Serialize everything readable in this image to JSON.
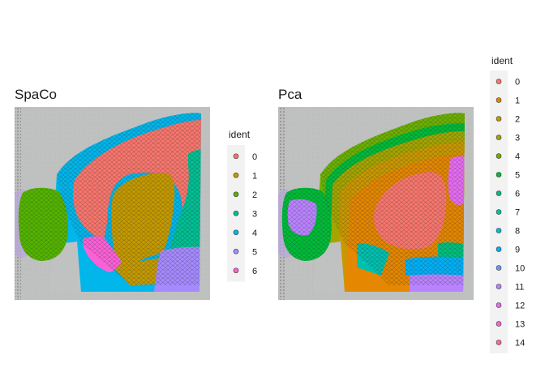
{
  "chart_data": [
    {
      "type": "spatial-scatter",
      "title": "SpaCo",
      "legend_title": "ident",
      "legend": [
        {
          "label": "0",
          "color": "#F8766D"
        },
        {
          "label": "1",
          "color": "#C49A00"
        },
        {
          "label": "2",
          "color": "#53B400"
        },
        {
          "label": "3",
          "color": "#00C094"
        },
        {
          "label": "4",
          "color": "#00B6EB"
        },
        {
          "label": "5",
          "color": "#A58AFF"
        },
        {
          "label": "6",
          "color": "#FB61D7"
        }
      ]
    },
    {
      "type": "spatial-scatter",
      "title": "Pca",
      "legend_title": "ident",
      "legend": [
        {
          "label": "0",
          "color": "#F8766D"
        },
        {
          "label": "1",
          "color": "#E58700"
        },
        {
          "label": "2",
          "color": "#C99800"
        },
        {
          "label": "3",
          "color": "#A3A500"
        },
        {
          "label": "4",
          "color": "#6BB100"
        },
        {
          "label": "5",
          "color": "#00BA38"
        },
        {
          "label": "6",
          "color": "#00BF7D"
        },
        {
          "label": "7",
          "color": "#00C0AF"
        },
        {
          "label": "8",
          "color": "#00BCD8"
        },
        {
          "label": "9",
          "color": "#00B0F6"
        },
        {
          "label": "10",
          "color": "#619CFF"
        },
        {
          "label": "11",
          "color": "#B983FF"
        },
        {
          "label": "12",
          "color": "#E76BF3"
        },
        {
          "label": "13",
          "color": "#FD61D1"
        },
        {
          "label": "14",
          "color": "#FF67A4"
        }
      ]
    }
  ]
}
